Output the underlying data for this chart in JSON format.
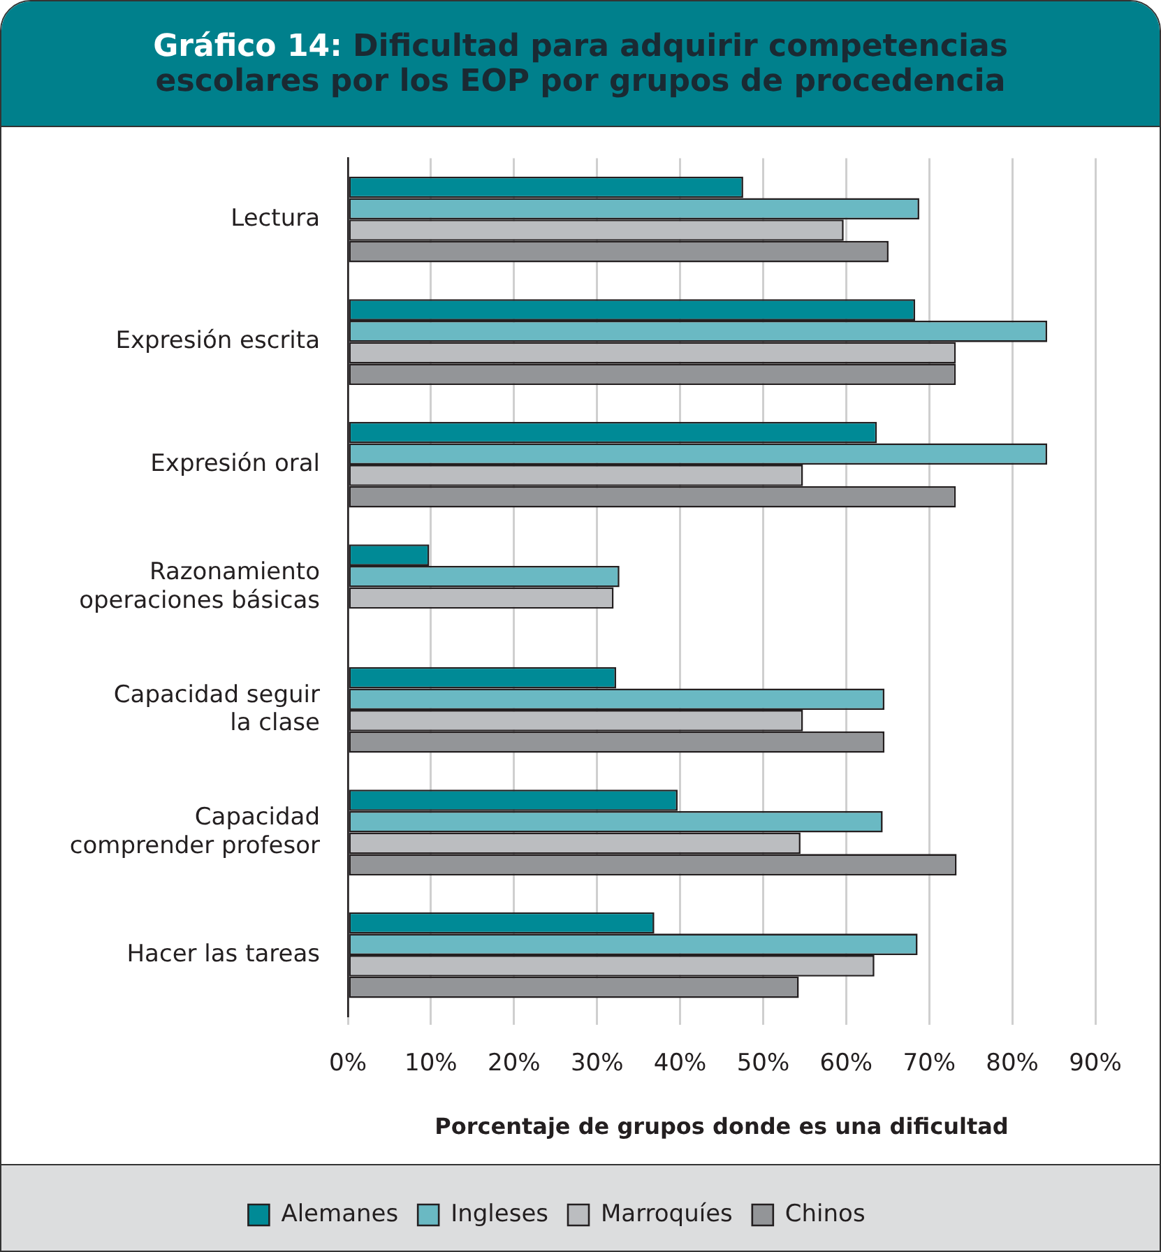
{
  "chart_data": {
    "type": "bar",
    "orientation": "horizontal",
    "title": "Gráfico 14: Dificultad para adquirir competencias escolares por los EOP por grupos de procedencia",
    "xlabel": "Porcentaje de grupos donde es una dificultad",
    "categories": [
      "Lectura",
      "Expresión escrita",
      "Expresión oral",
      "Razonamiento\noperaciones básicas",
      "Capacidad seguir\nla clase",
      "Capacidad\ncomprender profesor",
      "Hacer las tareas"
    ],
    "series": [
      {
        "name": "Alemanes",
        "color": "#008a96",
        "values": [
          47.6,
          68.3,
          63.7,
          9.8,
          32.3,
          39.7,
          36.9
        ]
      },
      {
        "name": "Ingleses",
        "color": "#6ab9c3",
        "values": [
          68.8,
          84.2,
          84.2,
          32.7,
          64.6,
          64.4,
          68.6
        ]
      },
      {
        "name": "Marroquíes",
        "color": "#bbbdc0",
        "values": [
          59.7,
          73.2,
          54.8,
          32.0,
          54.8,
          54.5,
          63.4
        ]
      },
      {
        "name": "Chinos",
        "color": "#939598",
        "values": [
          65.1,
          73.2,
          73.2,
          null,
          64.6,
          73.3,
          54.3
        ]
      }
    ],
    "xlim": [
      0,
      90
    ],
    "xticks": [
      {
        "value": 0,
        "label": "0%"
      },
      {
        "value": 10,
        "label": "10%"
      },
      {
        "value": 20,
        "label": "20%"
      },
      {
        "value": 30,
        "label": "30%"
      },
      {
        "value": 40,
        "label": "40%"
      },
      {
        "value": 50,
        "label": "50%"
      },
      {
        "value": 60,
        "label": "60%"
      },
      {
        "value": 70,
        "label": "70%"
      },
      {
        "value": 80,
        "label": "80%"
      },
      {
        "value": 90,
        "label": "90%"
      }
    ],
    "grid": "x",
    "legend": "bottom"
  }
}
